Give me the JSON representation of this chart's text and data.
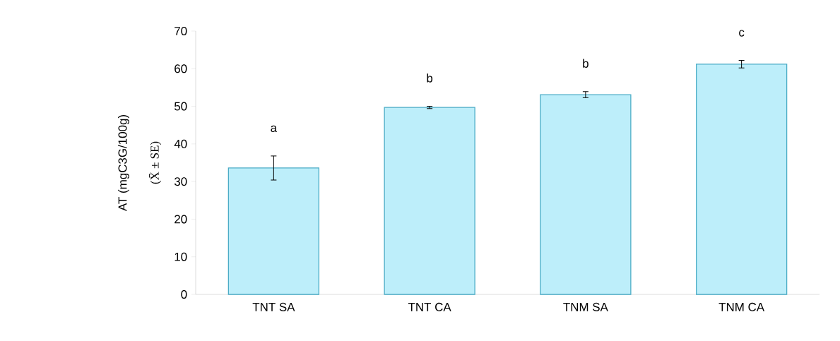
{
  "chart_data": {
    "type": "bar",
    "ylabel": "AT (mgC3G/100g)",
    "categories": [
      "TNT SA",
      "TNT CA",
      "TNM SA",
      "TNM CA"
    ],
    "values": [
      33.6,
      49.7,
      53.1,
      61.2
    ],
    "errors": [
      3.2,
      0.3,
      0.8,
      1.0
    ],
    "color": "#bdeefa",
    "ylim": [
      0,
      70
    ],
    "yticks": [
      0,
      10,
      20,
      30,
      40,
      50,
      60,
      70
    ],
    "annotations": [
      "a",
      "b",
      "b",
      "c",
      "(X̄ ± SE)"
    ]
  }
}
